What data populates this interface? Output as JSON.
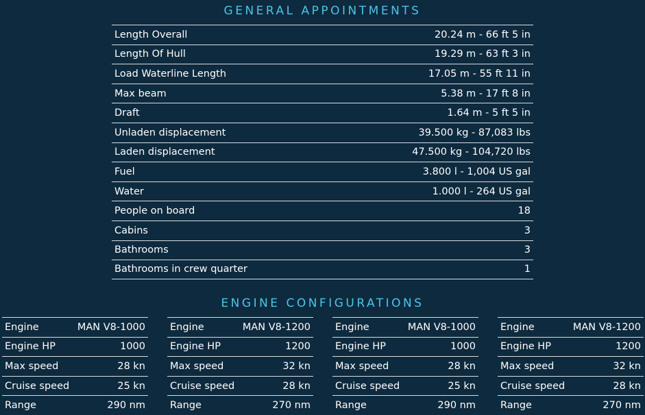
{
  "general": {
    "title": "GENERAL APPOINTMENTS",
    "rows": [
      [
        "Length Overall",
        "20.24 m - 66 ft 5 in"
      ],
      [
        "Length Of Hull",
        "19.29 m - 63 ft 3 in"
      ],
      [
        "Load Waterline Length",
        "17.05 m - 55 ft 11 in"
      ],
      [
        "Max beam",
        "5.38 m - 17 ft 8 in"
      ],
      [
        "Draft",
        "1.64 m - 5 ft 5 in"
      ],
      [
        "Unladen displacement",
        "39.500 kg - 87,083 lbs"
      ],
      [
        "Laden displacement",
        "47.500 kg - 104,720 lbs"
      ],
      [
        "Fuel",
        "3.800 l - 1,004 US gal"
      ],
      [
        "Water",
        "1.000 l - 264 US gal"
      ],
      [
        "People on board",
        "18"
      ],
      [
        "Cabins",
        "3"
      ],
      [
        "Bathrooms",
        "3"
      ],
      [
        "Bathrooms in crew quarter",
        "1"
      ]
    ]
  },
  "engines": {
    "title": "ENGINE CONFIGURATIONS",
    "configs": [
      [
        [
          "Engine",
          "MAN V8-1000"
        ],
        [
          "Engine HP",
          "1000"
        ],
        [
          "Max speed",
          "28 kn"
        ],
        [
          "Cruise speed",
          "25 kn"
        ],
        [
          "Range",
          "290 nm"
        ]
      ],
      [
        [
          "Engine",
          "MAN V8-1200"
        ],
        [
          "Engine HP",
          "1200"
        ],
        [
          "Max speed",
          "32 kn"
        ],
        [
          "Cruise speed",
          "28 kn"
        ],
        [
          "Range",
          "270 nm"
        ]
      ],
      [
        [
          "Engine",
          "MAN V8-1000"
        ],
        [
          "Engine HP",
          "1000"
        ],
        [
          "Max speed",
          "28 kn"
        ],
        [
          "Cruise speed",
          "25 kn"
        ],
        [
          "Range",
          "290 nm"
        ]
      ],
      [
        [
          "Engine",
          "MAN V8-1200"
        ],
        [
          "Engine HP",
          "1200"
        ],
        [
          "Max speed",
          "32 kn"
        ],
        [
          "Cruise speed",
          "28 kn"
        ],
        [
          "Range",
          "270 nm"
        ]
      ]
    ]
  }
}
